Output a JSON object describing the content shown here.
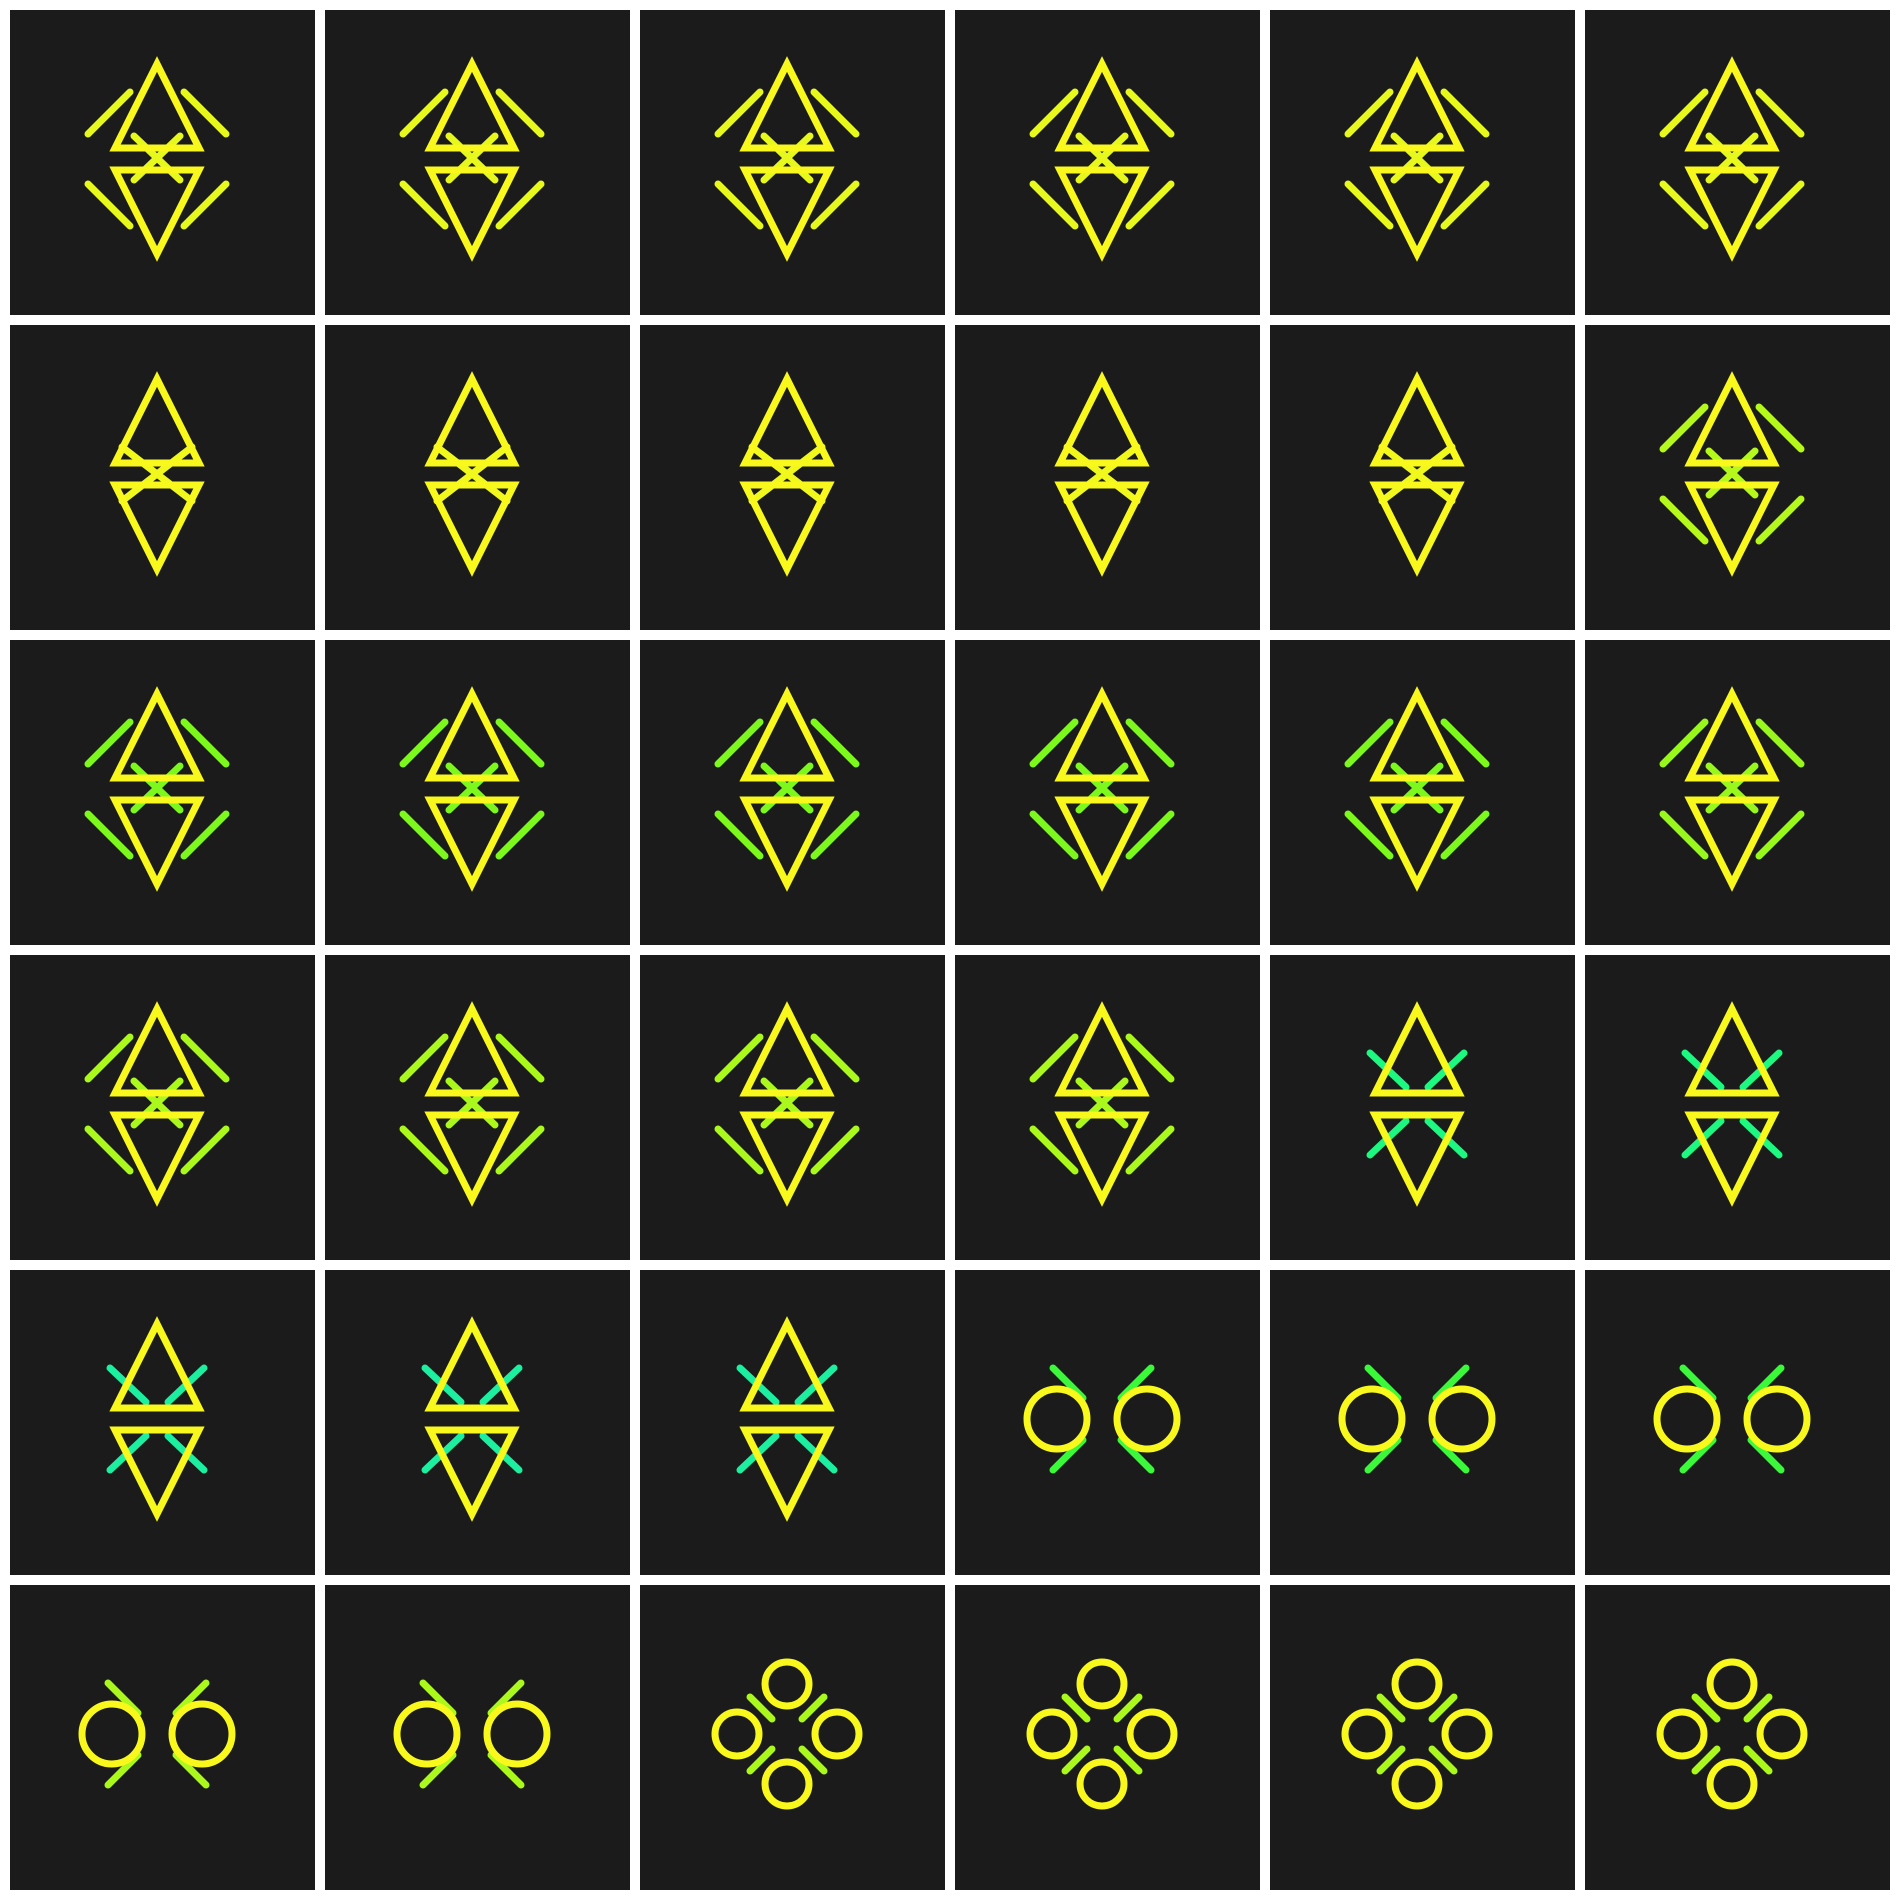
{
  "colors": {
    "background": "#ffffff",
    "tile": "#1b1b1b",
    "primary": "#f8f81c",
    "diagonal_palette": [
      "#e6f81c",
      "#c4f81c",
      "#98f81c",
      "#6cf81c",
      "#3cf83a",
      "#1cf880",
      "#1cf0a0"
    ]
  },
  "grid": {
    "rows": 6,
    "cols": 6,
    "tiles": [
      {
        "shape": "tri-pair-outer",
        "accent": "#e6f81c"
      },
      {
        "shape": "tri-pair-outer",
        "accent": "#e6f81c"
      },
      {
        "shape": "tri-pair-outer",
        "accent": "#e6f81c"
      },
      {
        "shape": "tri-pair-outer",
        "accent": "#e6f81c"
      },
      {
        "shape": "tri-pair-outer",
        "accent": "#e6f81c"
      },
      {
        "shape": "tri-pair-outer",
        "accent": "#e6f81c"
      },
      {
        "shape": "tri-pair-inner",
        "accent": "#f0f81c"
      },
      {
        "shape": "tri-pair-inner",
        "accent": "#f0f81c"
      },
      {
        "shape": "tri-pair-inner",
        "accent": "#f0f81c"
      },
      {
        "shape": "tri-pair-inner",
        "accent": "#f0f81c"
      },
      {
        "shape": "tri-pair-inner",
        "accent": "#f0f81c"
      },
      {
        "shape": "tri-pair-outer",
        "accent": "#b4f81c"
      },
      {
        "shape": "tri-pair-outer",
        "accent": "#7cf81c"
      },
      {
        "shape": "tri-pair-outer",
        "accent": "#7cf81c"
      },
      {
        "shape": "tri-pair-outer",
        "accent": "#7cf81c"
      },
      {
        "shape": "tri-pair-outer",
        "accent": "#7cf81c"
      },
      {
        "shape": "tri-pair-outer",
        "accent": "#7cf81c"
      },
      {
        "shape": "tri-pair-outer",
        "accent": "#98f81c"
      },
      {
        "shape": "tri-pair-outer",
        "accent": "#aaf81c"
      },
      {
        "shape": "tri-pair-outer",
        "accent": "#aaf81c"
      },
      {
        "shape": "tri-pair-outer",
        "accent": "#aaf81c"
      },
      {
        "shape": "tri-pair-outer",
        "accent": "#aaf81c"
      },
      {
        "shape": "tri-pair-cross",
        "accent": "#1cf880"
      },
      {
        "shape": "tri-pair-cross",
        "accent": "#1cf880"
      },
      {
        "shape": "tri-pair-cross",
        "accent": "#1cf0a0"
      },
      {
        "shape": "tri-pair-cross",
        "accent": "#1cf0a0"
      },
      {
        "shape": "tri-pair-cross",
        "accent": "#1cf0a0"
      },
      {
        "shape": "circle-pair",
        "accent": "#3cf83a"
      },
      {
        "shape": "circle-pair",
        "accent": "#3cf83a"
      },
      {
        "shape": "circle-pair",
        "accent": "#3cf83a"
      },
      {
        "shape": "circle-pair",
        "accent": "#aaf81c"
      },
      {
        "shape": "circle-pair",
        "accent": "#aaf81c"
      },
      {
        "shape": "circle-quad",
        "accent": "#aaf81c"
      },
      {
        "shape": "circle-quad",
        "accent": "#aaf81c"
      },
      {
        "shape": "circle-quad",
        "accent": "#aaf81c"
      },
      {
        "shape": "circle-quad",
        "accent": "#aaf81c"
      }
    ]
  }
}
